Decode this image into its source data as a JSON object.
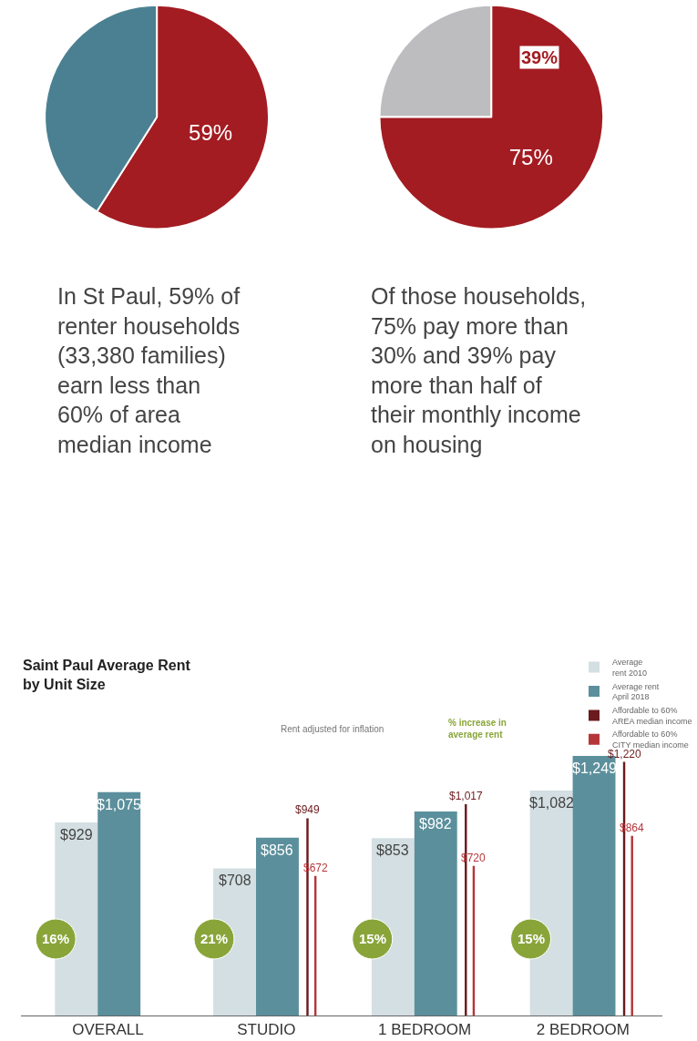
{
  "chart_data": [
    {
      "type": "pie",
      "categories": [
        null,
        null
      ],
      "values": [
        59,
        41
      ],
      "colors": [
        "#a31c22",
        "#4b8092"
      ],
      "value_labels": [
        "59%",
        null
      ],
      "annotations": [
        "In St Paul, 59% of\nrenter households\n(33,380 families)\nearn less than\n60% of area\nmedian income"
      ]
    },
    {
      "type": "pie",
      "categories": [
        null,
        null
      ],
      "values": [
        25,
        75
      ],
      "colors": [
        "#bdbdc0",
        "#a31c22"
      ],
      "value_labels": [
        null,
        "75%"
      ],
      "annotations": [
        "39%",
        "Of those households,\n75% pay more than\n30% and 39% pay\nmore than half of\ntheir monthly income\non housing"
      ]
    },
    {
      "type": "bar",
      "title": "Saint Paul Average Rent\nby Unit Size",
      "subtitle": "Rent adjusted for inflation",
      "categories": [
        "OVERALL",
        "STUDIO",
        "1 BEDROOM",
        "2 BEDROOM"
      ],
      "tick_labels": "x",
      "legend": "top right",
      "annotations": [
        "% increase in\naverage rent",
        "16%",
        "21%",
        "15%",
        "15%"
      ],
      "series": [
        {
          "name": "Average\nrent 2010",
          "color": "#d3dfe2",
          "values": [
            929,
            708,
            853,
            1082
          ],
          "value_labels": [
            "$929",
            "$708",
            "$853",
            "$1,082"
          ]
        },
        {
          "name": "Average rent\nApril 2018",
          "color": "#5b8f9c",
          "values": [
            1075,
            856,
            982,
            1249
          ],
          "value_labels": [
            "$1,075",
            "$856",
            "$982",
            "$1,249"
          ]
        },
        {
          "name": "Affordable to 60%\nAREA median income",
          "type": "bar",
          "color": "#6b1a1d",
          "values": [
            null,
            949,
            1017,
            1220
          ],
          "value_labels": [
            null,
            "$949",
            "$1,017",
            "$1,220"
          ]
        },
        {
          "name": "Affordable to 60%\nCITY median income",
          "type": "bar",
          "color": "#b5363a",
          "values": [
            null,
            672,
            720,
            864
          ],
          "value_labels": [
            null,
            "$672",
            "$720",
            "$864"
          ]
        }
      ]
    }
  ]
}
